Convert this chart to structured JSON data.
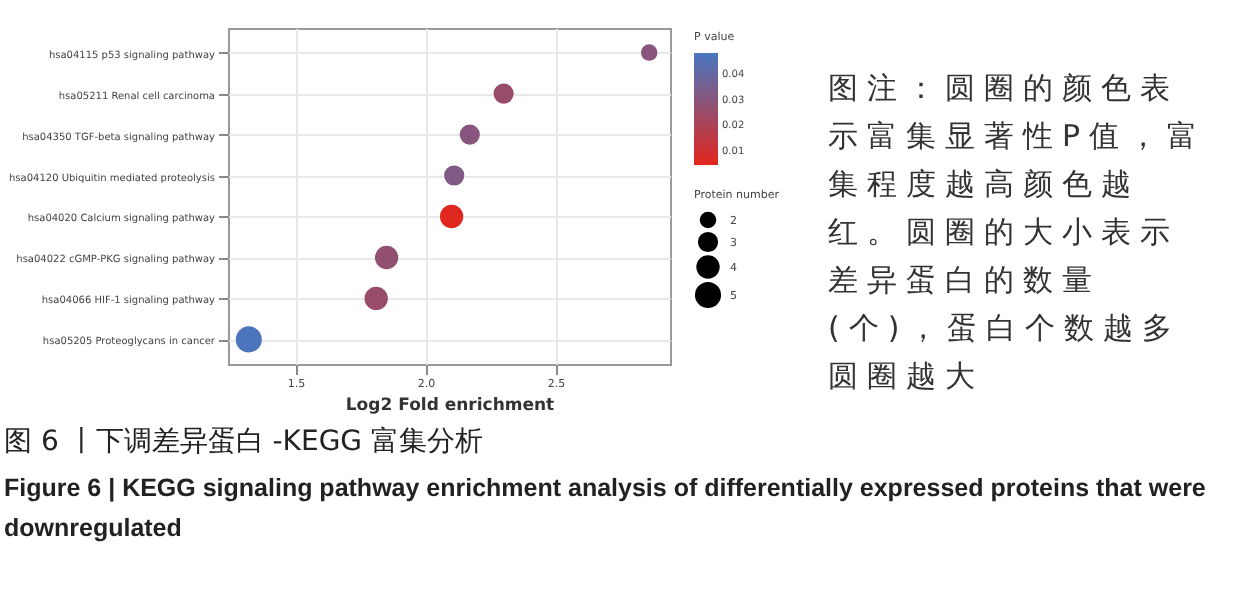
{
  "chart_data": {
    "type": "bubble",
    "orientation": "horizontal",
    "title": "图 6 丨下调差异蛋白 -KEGG 富集分析",
    "subtitle": "Figure 6  |  KEGG signaling pathway enrichment analysis of differentially expressed proteins that were downregulated",
    "xlabel": "Log2 Fold enrichment",
    "legend_title": "Protein number",
    "clabel": "P value",
    "categories": [
      "hsa04115 p53 signaling pathway",
      "hsa05211 Renal cell carcinoma",
      "hsa04350 TGF-beta signaling pathway",
      "hsa04120 Ubiquitin mediated proteolysis",
      "hsa04020 Calcium signaling pathway",
      "hsa04022 cGMP-PKG signaling pathway",
      "hsa04066 HIF-1 signaling pathway",
      "hsa05205 Proteoglycans in cancer"
    ],
    "values": [
      2.86,
      2.3,
      2.17,
      2.11,
      2.1,
      1.85,
      1.81,
      1.32
    ],
    "sizes": [
      2,
      3,
      3,
      3,
      4,
      4,
      4,
      5
    ],
    "size_legend": [
      2,
      3,
      4,
      5
    ],
    "cvalues": [
      0.03,
      0.025,
      0.03,
      0.032,
      0.005,
      0.027,
      0.025,
      0.047
    ],
    "clim": [
      0.004,
      0.048
    ],
    "cticks": [
      0.01,
      0.02,
      0.03,
      0.04
    ],
    "xlim": [
      1.24,
      2.94
    ],
    "xticks": [
      1.5,
      {
        "value": 2,
        "label": "2.0"
      },
      2.5
    ],
    "grid": true,
    "annotations": [
      "图注：圆圈的颜色表示富集显著性P值，富集程度越高颜色越红。圆圈的大小表示差异蛋白的数量(个)，蛋白个数越多圆圈越大"
    ]
  }
}
